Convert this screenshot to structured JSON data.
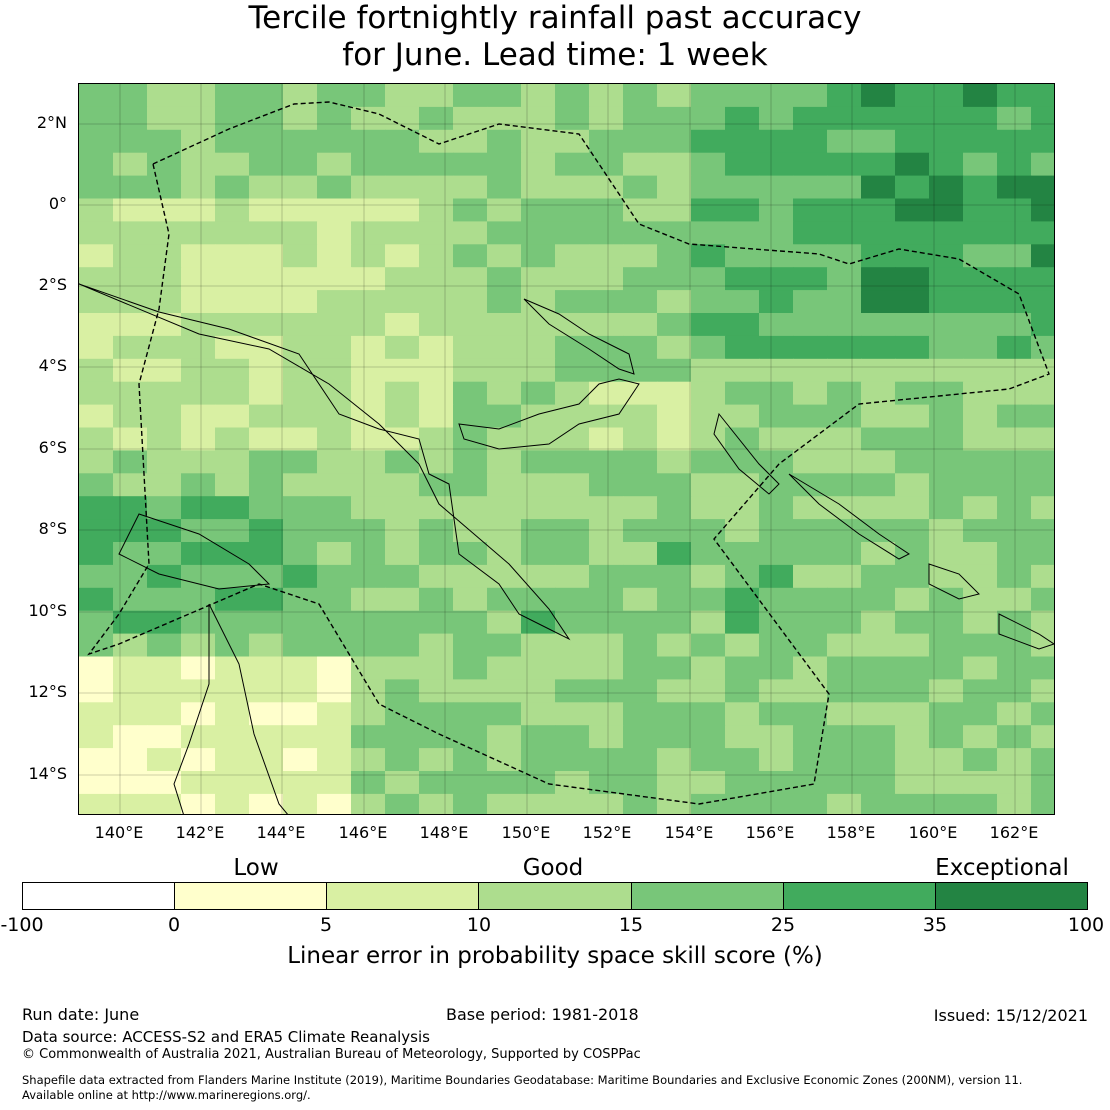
{
  "title": {
    "line1": "Tercile fortnightly rainfall past accuracy",
    "line2": "for June. Lead time: 1 week"
  },
  "map": {
    "lat_labels": [
      "2°N",
      "0°",
      "2°S",
      "4°S",
      "6°S",
      "8°S",
      "10°S",
      "12°S",
      "14°S"
    ],
    "lon_labels": [
      "140°E",
      "142°E",
      "144°E",
      "146°E",
      "148°E",
      "150°E",
      "152°E",
      "154°E",
      "156°E",
      "158°E",
      "160°E",
      "162°E"
    ],
    "extent": {
      "lon_min": 139,
      "lon_max": 163,
      "lat_min": -15,
      "lat_max": 3
    },
    "boundary_style": "dashed black EEZ outline",
    "coastline_style": "thin black"
  },
  "colorbar": {
    "categories": [
      "Low",
      "Good",
      "Exceptional"
    ],
    "ticks": [
      "-100",
      "0",
      "5",
      "10",
      "15",
      "25",
      "35",
      "100"
    ],
    "colors": [
      "#ffffff",
      "#ffffcc",
      "#d9f0a3",
      "#addd8e",
      "#78c679",
      "#41ab5d",
      "#238443"
    ],
    "label": "Linear error in probability space skill score (%)"
  },
  "footer": {
    "run_date": "Run date: June",
    "base_period": "Base period: 1981-2018",
    "issued": "Issued: 15/12/2021",
    "data_source": "Data source: ACCESS-S2 and ERA5 Climate Reanalysis",
    "copyright": "© Commonwealth of Australia 2021, Australian Bureau of Meteorology, Supported by COSPPac",
    "shapefile_1": "Shapefile data extracted from Flanders Marine Institute (2019), Maritime Boundaries Geodatabase: Maritime Boundaries and Exclusive Economic Zones (200NM), version 11.",
    "shapefile_2": "Available online at http://www.marineregions.org/."
  }
}
